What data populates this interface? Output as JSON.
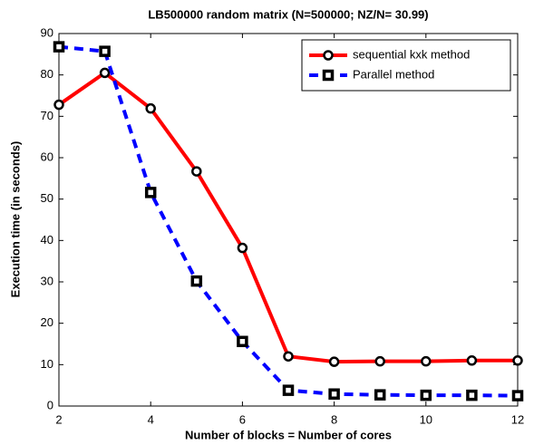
{
  "chart_data": {
    "type": "line",
    "title": "LB500000 random matrix (N=500000; NZ/N= 30.99)",
    "xlabel": "Number of blocks = Number of cores",
    "ylabel": "Execution time (in seconds)",
    "x": [
      2,
      3,
      4,
      5,
      6,
      7,
      8,
      9,
      10,
      11,
      12
    ],
    "series": [
      {
        "name": "sequential kxk method",
        "color": "#ff0000",
        "line_style": "solid",
        "marker": "circle",
        "values": [
          72.8,
          80.5,
          71.9,
          56.7,
          38.2,
          12.0,
          10.7,
          10.8,
          10.8,
          11.0,
          11.0
        ]
      },
      {
        "name": "Parallel method",
        "color": "#0000ff",
        "line_style": "dashed",
        "marker": "square",
        "values": [
          86.8,
          85.7,
          51.6,
          30.2,
          15.6,
          3.8,
          2.9,
          2.7,
          2.6,
          2.6,
          2.5
        ]
      }
    ],
    "xlim": [
      2,
      12
    ],
    "xticks": [
      2,
      4,
      6,
      8,
      10,
      12
    ],
    "ylim": [
      0,
      90
    ],
    "yticks": [
      0,
      10,
      20,
      30,
      40,
      50,
      60,
      70,
      80,
      90
    ],
    "legend": "upper right"
  }
}
